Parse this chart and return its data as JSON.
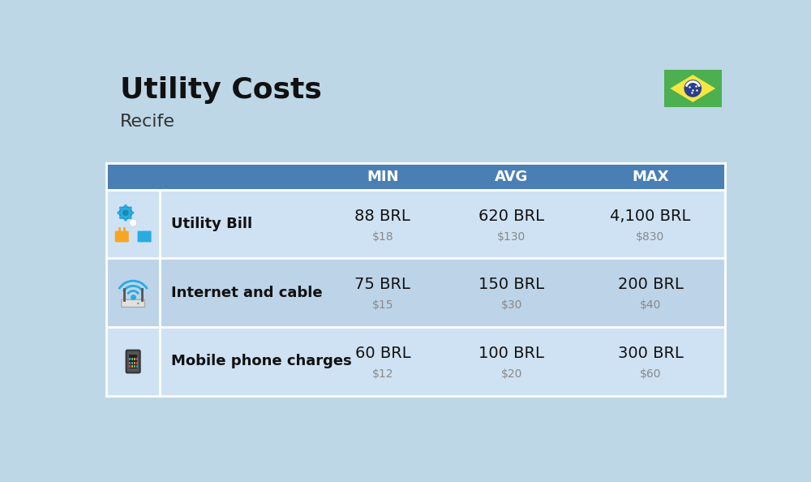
{
  "title": "Utility Costs",
  "subtitle": "Recife",
  "background_color": "#bdd7e7",
  "header_bg_color": "#4a7fb5",
  "header_text_color": "#ffffff",
  "row_bg_color_1": "#cfe2f3",
  "row_bg_color_2": "#bdd4e8",
  "icon_col_bg": "#4a7fb5",
  "table_border_color": "#ffffff",
  "columns": [
    "MIN",
    "AVG",
    "MAX"
  ],
  "rows": [
    {
      "label": "Utility Bill",
      "min_brl": "88 BRL",
      "min_usd": "$18",
      "avg_brl": "620 BRL",
      "avg_usd": "$130",
      "max_brl": "4,100 BRL",
      "max_usd": "$830",
      "icon": "utility"
    },
    {
      "label": "Internet and cable",
      "min_brl": "75 BRL",
      "min_usd": "$15",
      "avg_brl": "150 BRL",
      "avg_usd": "$30",
      "max_brl": "200 BRL",
      "max_usd": "$40",
      "icon": "internet"
    },
    {
      "label": "Mobile phone charges",
      "min_brl": "60 BRL",
      "min_usd": "$12",
      "avg_brl": "100 BRL",
      "avg_usd": "$20",
      "max_brl": "300 BRL",
      "max_usd": "$60",
      "icon": "mobile"
    }
  ],
  "title_fontsize": 26,
  "subtitle_fontsize": 16,
  "header_fontsize": 13,
  "label_fontsize": 13,
  "value_fontsize": 14,
  "usd_fontsize": 10,
  "usd_color": "#888888",
  "flag_green": "#4caf50",
  "flag_yellow": "#f5e642",
  "flag_blue": "#2b3f8c",
  "col_positions": [
    0.08,
    0.93,
    3.45,
    5.5,
    7.55,
    9.92
  ]
}
